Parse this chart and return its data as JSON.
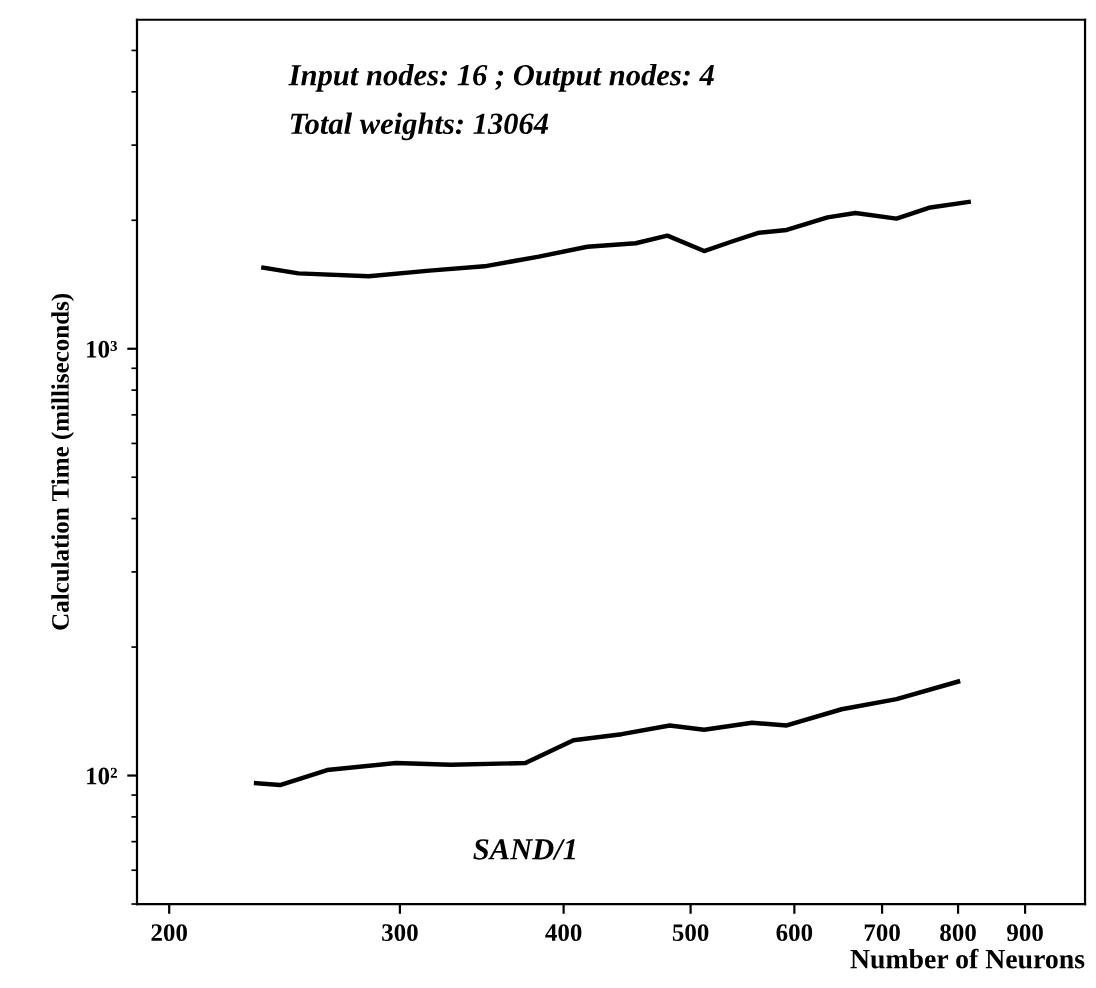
{
  "chart_data": {
    "type": "line",
    "xlabel": "Number of Neurons",
    "ylabel": "Calculation Time (milliseconds)",
    "annotations": [
      "Input nodes: 16 ; Output nodes: 4",
      "Total weights: 13064"
    ],
    "log": "xy",
    "grid": false,
    "legend": false,
    "marker": "none",
    "line_style": "solid",
    "xlim": [
      189,
      1000
    ],
    "xticks": [
      200,
      300,
      400,
      500,
      600,
      700,
      800,
      900
    ],
    "ylim": [
      50,
      5900
    ],
    "yticks": [
      {
        "value": 100,
        "label": "10²"
      },
      {
        "value": 1000,
        "label": "10³"
      }
    ],
    "series": [
      {
        "color": "#000000",
        "x": [
          236,
          251,
          284,
          316,
          348,
          383,
          417,
          454,
          480,
          512,
          537,
          564,
          592,
          636,
          668,
          718,
          762,
          815
        ],
        "values": [
          1548,
          1502,
          1479,
          1524,
          1560,
          1644,
          1734,
          1767,
          1841,
          1694,
          1781,
          1870,
          1898,
          2032,
          2080,
          2018,
          2143,
          2208
        ]
      },
      {
        "name": "SAND/1",
        "color": "#000000",
        "x": [
          233,
          243,
          264,
          298,
          328,
          374,
          407,
          443,
          482,
          512,
          557,
          592,
          652,
          718,
          800
        ],
        "values": [
          96,
          95,
          103,
          107,
          106,
          107,
          121,
          125,
          131,
          128,
          133,
          131,
          143,
          151,
          166
        ]
      }
    ]
  }
}
